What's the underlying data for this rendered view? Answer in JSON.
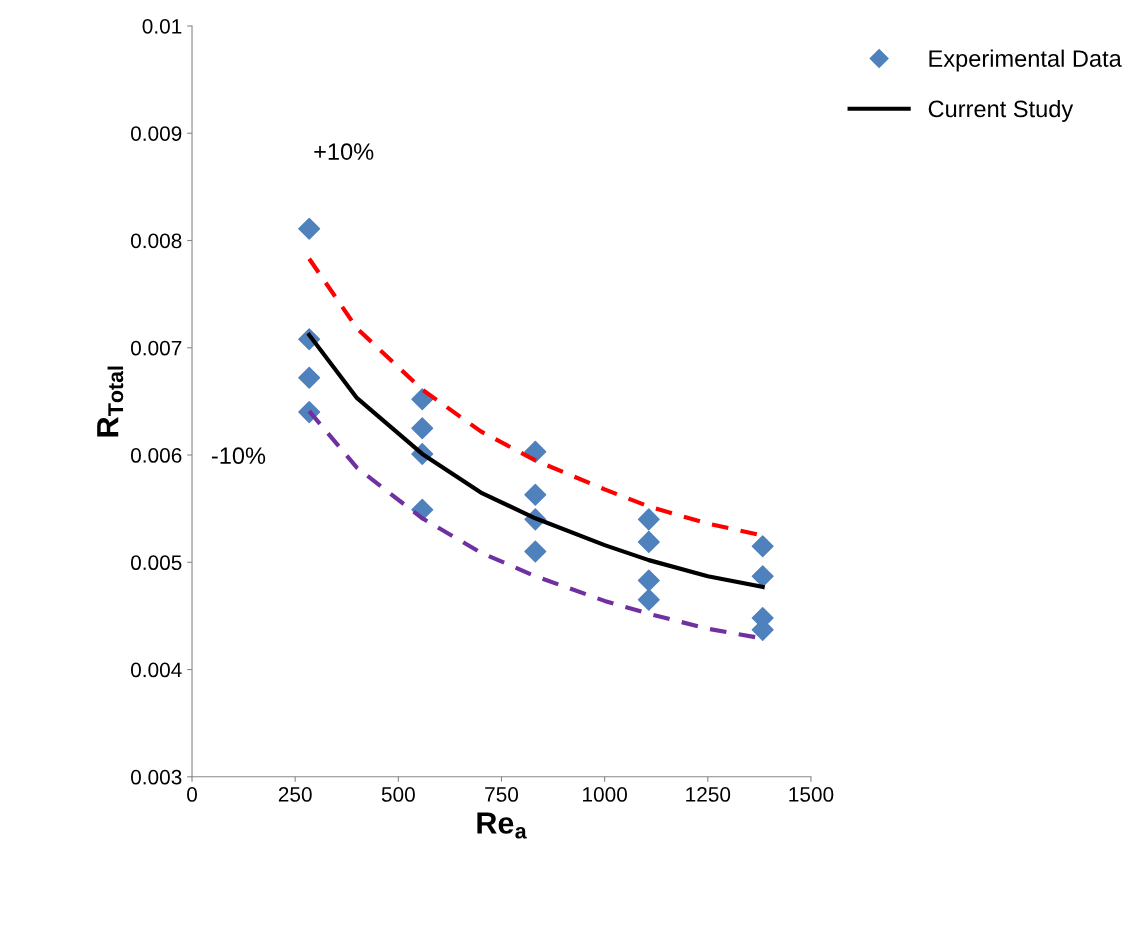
{
  "chart_data": {
    "type": "scatter",
    "xlabel": "Re$_{a}$",
    "ylabel": "R$_{Total}$",
    "xlim": [
      0,
      1500
    ],
    "xticks": [
      0,
      250,
      500,
      750,
      1000,
      1250,
      1500
    ],
    "ylim": [
      0.003,
      0.01
    ],
    "yticks": [
      {
        "value": 0.003,
        "label": "0.003"
      },
      {
        "value": 0.004,
        "label": "0.004"
      },
      {
        "value": 0.005,
        "label": "0.005"
      },
      {
        "value": 0.006,
        "label": "0.006"
      },
      {
        "value": 0.007,
        "label": "0.007"
      },
      {
        "value": 0.008,
        "label": "0.008"
      },
      {
        "value": 0.009,
        "label": "0.009"
      },
      {
        "value": 0.01,
        "label": "0.01"
      }
    ],
    "grid": false,
    "legend": "top right",
    "series": [
      {
        "name": "Experimental Data",
        "marker": "diamond",
        "color": "#4f81bd",
        "x": [
          284,
          284,
          284,
          284,
          558,
          558,
          558,
          558,
          832,
          832,
          832,
          832,
          1107,
          1107,
          1107,
          1107,
          1383,
          1383,
          1383,
          1383
        ],
        "values": [
          0.00811,
          0.00708,
          0.00672,
          0.0064,
          0.00652,
          0.00625,
          0.00601,
          0.00549,
          0.00603,
          0.00563,
          0.0054,
          0.0051,
          0.0054,
          0.00519,
          0.00483,
          0.00465,
          0.00515,
          0.00487,
          0.00448,
          0.00437
        ]
      },
      {
        "name": "Current Study",
        "type": "line",
        "line_style": "solid",
        "color": "#000000",
        "x": [
          284,
          400,
          558,
          700,
          832,
          1000,
          1107,
          1250,
          1383
        ],
        "values": [
          0.00712,
          0.00653,
          0.00601,
          0.00565,
          0.00541,
          0.00516,
          0.00502,
          0.00487,
          0.00477
        ]
      },
      {
        "type": "line",
        "line_style": "dashed",
        "color": "#ff0000",
        "x": [
          284,
          400,
          558,
          700,
          832,
          1000,
          1107,
          1250,
          1383
        ],
        "values": [
          0.00783,
          0.00718,
          0.00661,
          0.00622,
          0.00595,
          0.00568,
          0.00552,
          0.00536,
          0.00525
        ]
      },
      {
        "type": "line",
        "line_style": "dashed",
        "color": "#7030a0",
        "x": [
          284,
          400,
          558,
          700,
          832,
          1000,
          1107,
          1250,
          1383
        ],
        "values": [
          0.00641,
          0.00588,
          0.00541,
          0.00509,
          0.00487,
          0.00464,
          0.00452,
          0.00438,
          0.00429
        ]
      }
    ],
    "annotations": [
      "+10%",
      "-10%"
    ]
  }
}
